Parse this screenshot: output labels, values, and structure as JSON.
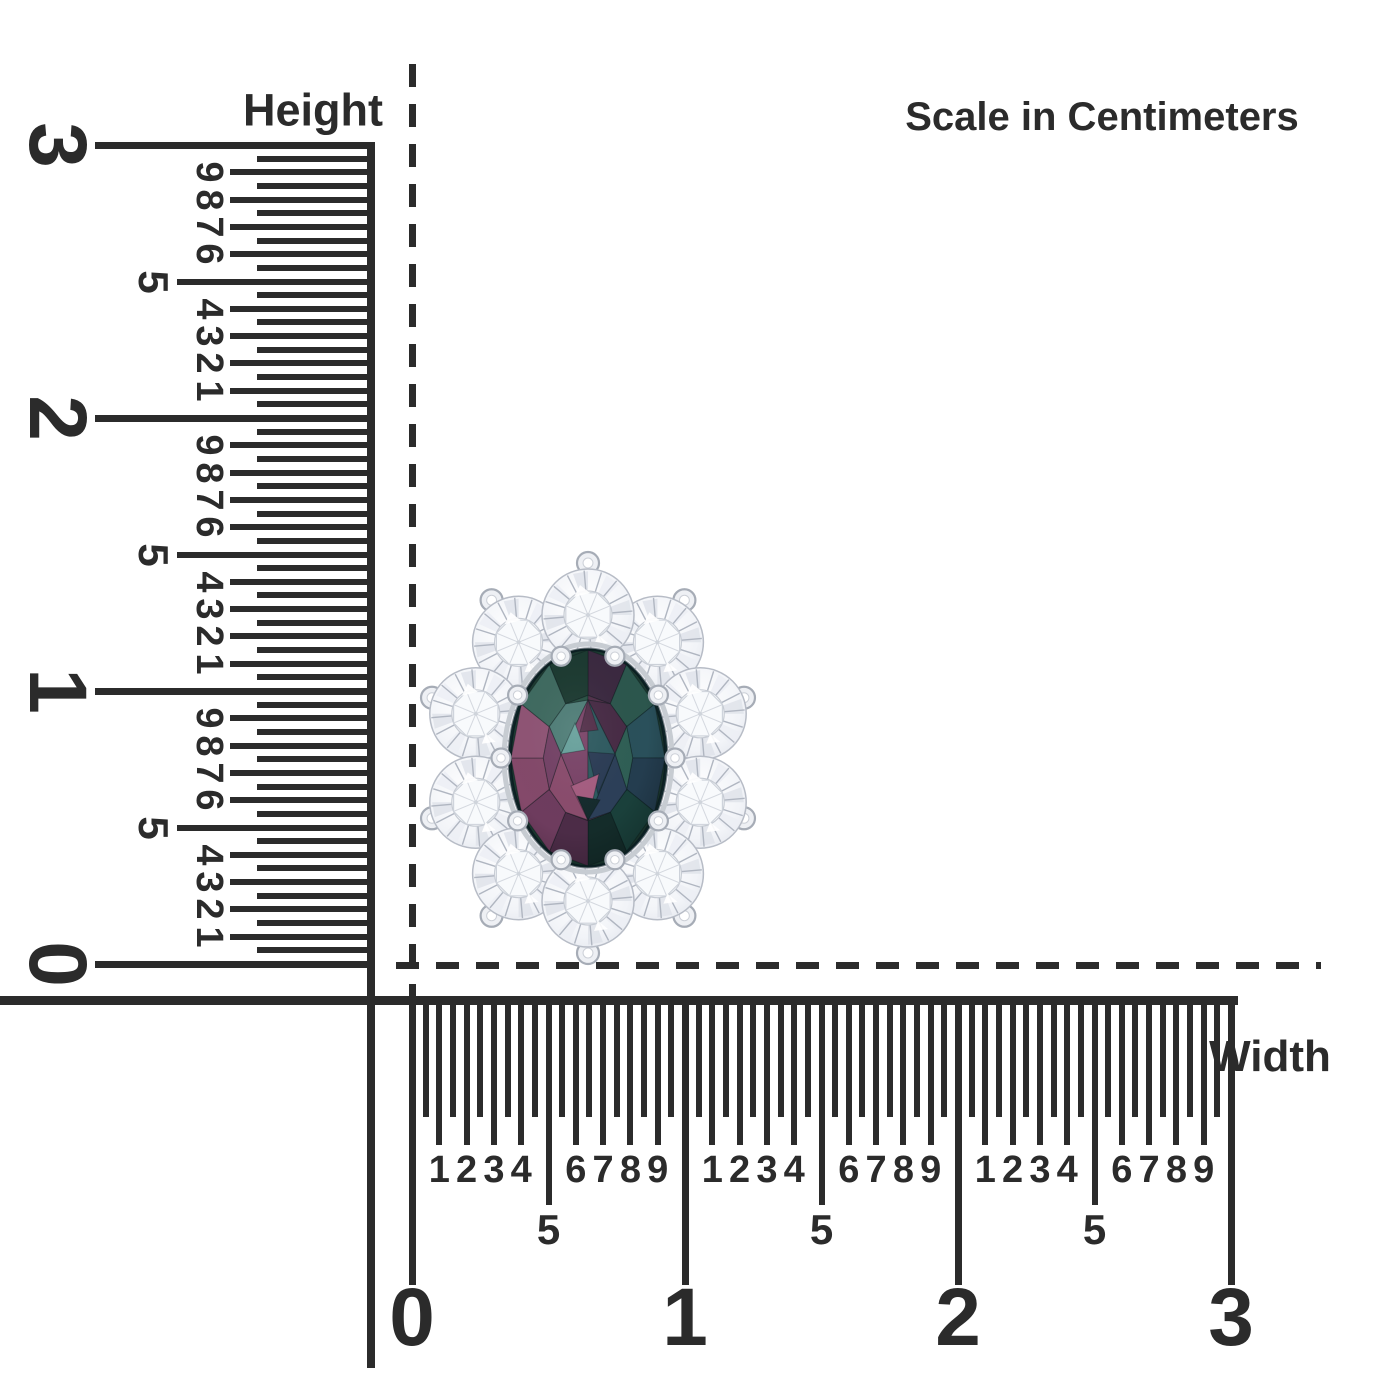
{
  "scale_note": "Scale in Centimeters",
  "rulers": {
    "height": {
      "label": "Height",
      "cm_labels": [
        "3",
        "2",
        "1",
        "0"
      ],
      "mm_labels": [
        "9",
        "8",
        "7",
        "6",
        "4",
        "3",
        "2",
        "1"
      ],
      "half_cm_label": "5"
    },
    "width": {
      "label": "Width",
      "cm_labels": [
        "0",
        "1",
        "2",
        "3"
      ],
      "mm_labels": [
        "1",
        "2",
        "3",
        "4",
        "6",
        "7",
        "8",
        "9"
      ],
      "half_cm_label": "5"
    }
  },
  "colors": {
    "ink": "#2b2b2b",
    "metal": "#a6acb6",
    "diamond_base": "#f4f6f9",
    "gem_dark_green": "#1c3a31",
    "gem_teal": "#2f5f55",
    "gem_navy": "#2b3c55",
    "gem_purple": "#7a4468",
    "gem_magenta": "#8a4c6d",
    "gem_pink": "#a55d81"
  },
  "jewel": {
    "description": "Oval gemstone halo stud with round diamonds",
    "halo_stone_count": 10
  }
}
